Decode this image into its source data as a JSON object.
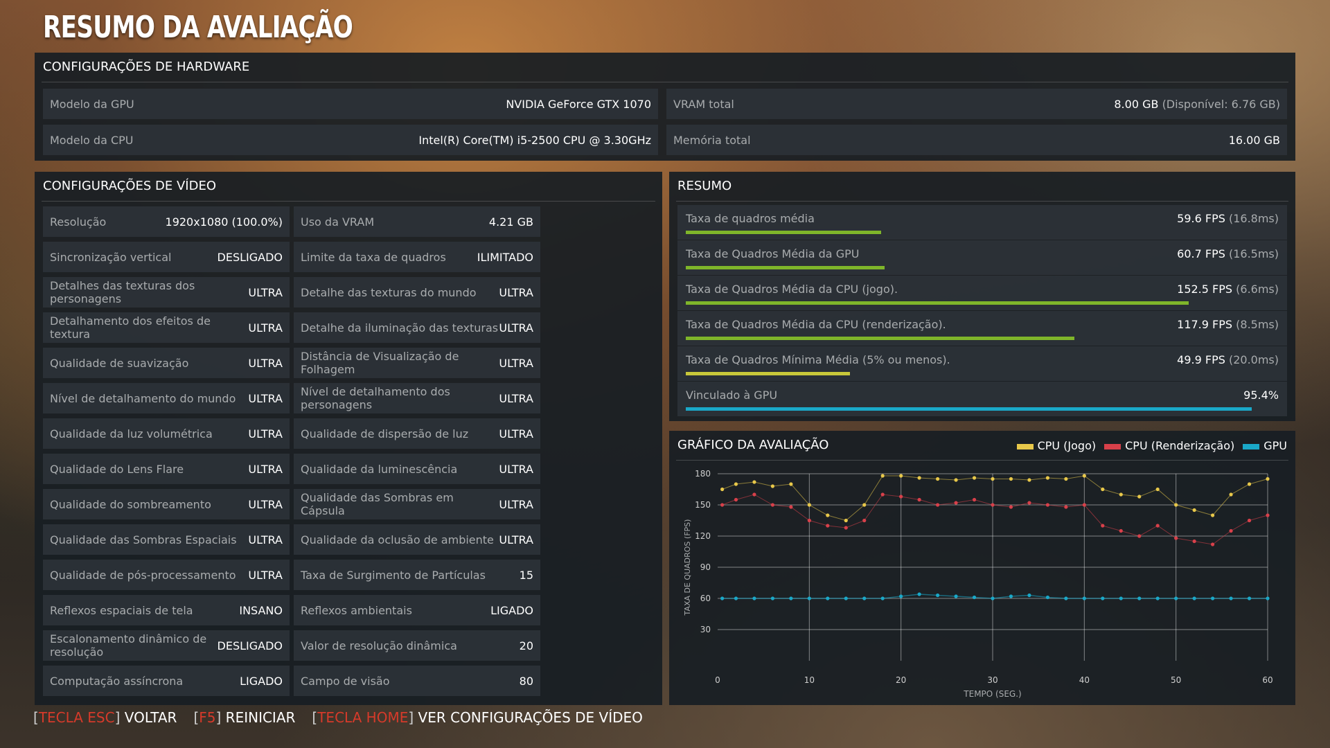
{
  "title": "RESUMO DA AVALIAÇÃO",
  "hardware": {
    "header": "CONFIGURAÇÕES DE HARDWARE",
    "gpu_label": "Modelo da GPU",
    "gpu_value": "NVIDIA GeForce GTX 1070",
    "cpu_label": "Modelo da CPU",
    "cpu_value": "Intel(R) Core(TM) i5-2500 CPU @ 3.30GHz",
    "vram_label": "VRAM total",
    "vram_value": "8.00 GB",
    "vram_sub": "(Disponível: 6.76 GB)",
    "mem_label": "Memória total",
    "mem_value": "16.00 GB"
  },
  "video": {
    "header": "CONFIGURAÇÕES DE VÍDEO",
    "left": [
      {
        "label": "Resolução",
        "value": "1920x1080 (100.0%)"
      },
      {
        "label": "Sincronização vertical",
        "value": "DESLIGADO"
      },
      {
        "label": "Detalhes das texturas dos personagens",
        "value": "ULTRA"
      },
      {
        "label": "Detalhamento dos efeitos de textura",
        "value": "ULTRA"
      },
      {
        "label": "Qualidade de suavização",
        "value": "ULTRA"
      },
      {
        "label": "Nível de detalhamento do mundo",
        "value": "ULTRA"
      },
      {
        "label": "Qualidade da luz volumétrica",
        "value": "ULTRA"
      },
      {
        "label": "Qualidade do Lens Flare",
        "value": "ULTRA"
      },
      {
        "label": "Qualidade do sombreamento",
        "value": "ULTRA"
      },
      {
        "label": "Qualidade das Sombras Espaciais",
        "value": "ULTRA"
      },
      {
        "label": "Qualidade de pós-processamento",
        "value": "ULTRA"
      },
      {
        "label": "Reflexos espaciais de tela",
        "value": "INSANO"
      },
      {
        "label": "Escalonamento dinâmico de resolução",
        "value": "DESLIGADO"
      },
      {
        "label": "Computação assíncrona",
        "value": "LIGADO"
      }
    ],
    "right": [
      {
        "label": "Uso da VRAM",
        "value": "4.21 GB"
      },
      {
        "label": "Limite da taxa de quadros",
        "value": "ILIMITADO"
      },
      {
        "label": "Detalhe das texturas do mundo",
        "value": "ULTRA"
      },
      {
        "label": "Detalhe da iluminação das texturas",
        "value": "ULTRA"
      },
      {
        "label": "Distância de Visualização de Folhagem",
        "value": "ULTRA"
      },
      {
        "label": "Nível de detalhamento dos personagens",
        "value": "ULTRA"
      },
      {
        "label": "Qualidade de dispersão de luz",
        "value": "ULTRA"
      },
      {
        "label": "Qualidade da luminescência",
        "value": "ULTRA"
      },
      {
        "label": "Qualidade das Sombras em Cápsula",
        "value": "ULTRA"
      },
      {
        "label": "Qualidade da oclusão de ambiente",
        "value": "ULTRA"
      },
      {
        "label": "Taxa de Surgimento de Partículas",
        "value": "15"
      },
      {
        "label": "Reflexos ambientais",
        "value": "LIGADO"
      },
      {
        "label": "Valor de resolução dinâmica",
        "value": "20"
      },
      {
        "label": "Campo de visão",
        "value": "80"
      }
    ]
  },
  "summary": {
    "header": "RESUMO",
    "rows": [
      {
        "label": "Taxa de quadros média",
        "value": "59.6 FPS",
        "sub": "(16.8ms)",
        "fill": 0.33,
        "color": "#7fb52a"
      },
      {
        "label": "Taxa de Quadros Média da GPU",
        "value": "60.7 FPS",
        "sub": "(16.5ms)",
        "fill": 0.335,
        "color": "#7fb52a"
      },
      {
        "label": "Taxa de Quadros Média da CPU (jogo).",
        "value": "152.5 FPS",
        "sub": "(6.6ms)",
        "fill": 0.848,
        "color": "#7fb52a"
      },
      {
        "label": "Taxa de Quadros Média da CPU (renderização).",
        "value": "117.9 FPS",
        "sub": "(8.5ms)",
        "fill": 0.655,
        "color": "#7fb52a"
      },
      {
        "label": "Taxa de Quadros Mínima Média (5% ou menos).",
        "value": "49.9 FPS",
        "sub": "(20.0ms)",
        "fill": 0.277,
        "color": "#c8c83a"
      },
      {
        "label": "Vinculado à GPU",
        "value": "95.4%",
        "sub": "",
        "fill": 0.954,
        "color": "#1aa8c8"
      }
    ]
  },
  "chart_header": "GRÁFICO DA AVALIAÇÃO",
  "chart_data": {
    "type": "scatter",
    "title": "GRÁFICO DA AVALIAÇÃO",
    "xlabel": "TEMPO (SEG.)",
    "ylabel": "TAXA DE QUADROS (FPS)",
    "xlim": [
      0,
      60
    ],
    "ylim": [
      0,
      180
    ],
    "xticks": [
      0,
      10,
      20,
      30,
      40,
      50,
      60
    ],
    "yticks": [
      30,
      60,
      90,
      120,
      150,
      180
    ],
    "grid": true,
    "legend_position": "top-right",
    "series": [
      {
        "name": "CPU (Jogo)",
        "color": "#e8c84a",
        "x": [
          0.5,
          2,
          4,
          6,
          8,
          10,
          12,
          14,
          16,
          18,
          20,
          22,
          24,
          26,
          28,
          30,
          32,
          34,
          36,
          38,
          40,
          42,
          44,
          46,
          48,
          50,
          52,
          54,
          56,
          58,
          60
        ],
        "values": [
          165,
          170,
          172,
          168,
          170,
          150,
          140,
          135,
          150,
          178,
          178,
          176,
          175,
          174,
          176,
          175,
          175,
          174,
          176,
          175,
          178,
          165,
          160,
          158,
          165,
          150,
          145,
          140,
          160,
          170,
          175
        ]
      },
      {
        "name": "CPU (Renderização)",
        "color": "#d8404a",
        "x": [
          0.5,
          2,
          4,
          6,
          8,
          10,
          12,
          14,
          16,
          18,
          20,
          22,
          24,
          26,
          28,
          30,
          32,
          34,
          36,
          38,
          40,
          42,
          44,
          46,
          48,
          50,
          52,
          54,
          56,
          58,
          60
        ],
        "values": [
          150,
          155,
          160,
          150,
          148,
          135,
          130,
          128,
          135,
          160,
          158,
          155,
          150,
          152,
          155,
          150,
          148,
          152,
          150,
          148,
          150,
          130,
          125,
          120,
          130,
          118,
          115,
          112,
          125,
          135,
          140
        ]
      },
      {
        "name": "GPU",
        "color": "#1aa8c8",
        "x": [
          0.5,
          2,
          4,
          6,
          8,
          10,
          12,
          14,
          16,
          18,
          20,
          22,
          24,
          26,
          28,
          30,
          32,
          34,
          36,
          38,
          40,
          42,
          44,
          46,
          48,
          50,
          52,
          54,
          56,
          58,
          60
        ],
        "values": [
          60,
          60,
          60,
          60,
          60,
          60,
          60,
          60,
          60,
          60,
          62,
          64,
          63,
          62,
          61,
          60,
          62,
          63,
          61,
          60,
          60,
          60,
          60,
          60,
          60,
          60,
          60,
          60,
          60,
          60,
          60
        ]
      }
    ]
  },
  "footer": {
    "esc_key": "TECLA ESC",
    "esc_label": "VOLTAR",
    "f5_key": "F5",
    "f5_label": "REINICIAR",
    "home_key": "TECLA HOME",
    "home_label": "VER CONFIGURAÇÕES DE VÍDEO"
  }
}
